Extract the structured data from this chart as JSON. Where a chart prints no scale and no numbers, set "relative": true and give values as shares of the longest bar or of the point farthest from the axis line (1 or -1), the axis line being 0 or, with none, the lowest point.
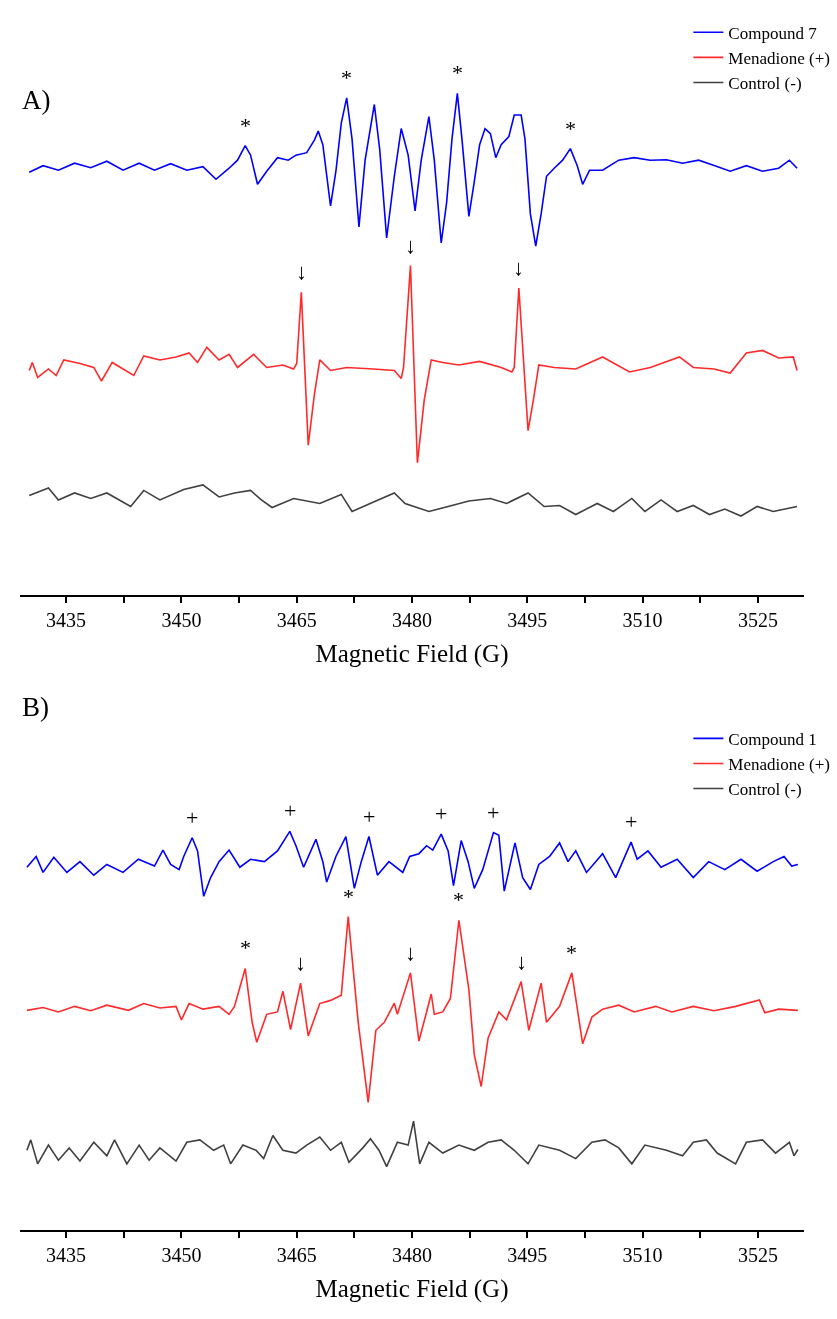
{
  "chart_data": [
    {
      "type": "line",
      "title": "A)",
      "xlabel": "Magnetic Field (G)",
      "relative": true,
      "legend": "top right",
      "xlim": [
        3429,
        3531
      ],
      "xticks": [
        3435,
        {
          "value": 3442.5,
          "label": null
        },
        3450,
        {
          "value": 3457.5,
          "label": null
        },
        3465,
        {
          "value": 3472.5,
          "label": null
        },
        3480,
        {
          "value": 3487.5,
          "label": null
        },
        3495,
        {
          "value": 3502.5,
          "label": null
        },
        3510,
        {
          "value": 3517.5,
          "label": null
        },
        3525
      ],
      "series": [
        {
          "name": "Compound 7",
          "color": "#0000ff",
          "x": [
            3430.2,
            3432.0,
            3434.0,
            3436.1,
            3438.2,
            3440.3,
            3442.4,
            3444.5,
            3446.5,
            3448.6,
            3450.7,
            3452.8,
            3454.5,
            3456.2,
            3457.3,
            3458.3,
            3459.0,
            3459.9,
            3461.1,
            3462.5,
            3463.9,
            3464.9,
            3466.3,
            3467.3,
            3467.8,
            3468.4,
            3469.4,
            3470.1,
            3470.8,
            3471.5,
            3472.2,
            3473.1,
            3473.9,
            3475.1,
            3475.8,
            3476.7,
            3477.7,
            3478.6,
            3479.5,
            3480.4,
            3481.2,
            3482.2,
            3482.9,
            3483.8,
            3484.5,
            3485.2,
            3485.9,
            3486.5,
            3487.4,
            3488.1,
            3488.8,
            3489.5,
            3490.2,
            3490.9,
            3491.6,
            3492.6,
            3493.3,
            3494.2,
            3494.7,
            3495.4,
            3496.1,
            3496.8,
            3497.5,
            3498.5,
            3499.6,
            3500.6,
            3501.5,
            3502.2,
            3503.1,
            3504.8,
            3506.9,
            3508.9,
            3511.0,
            3513.1,
            3515.2,
            3517.3,
            3519.4,
            3521.4,
            3523.5,
            3525.6,
            3527.7,
            3529.1,
            3530.1
          ],
          "values": [
            0.843,
            0.856,
            0.847,
            0.861,
            0.852,
            0.865,
            0.847,
            0.861,
            0.847,
            0.86,
            0.847,
            0.854,
            0.829,
            0.851,
            0.867,
            0.896,
            0.877,
            0.819,
            0.845,
            0.872,
            0.867,
            0.877,
            0.882,
            0.907,
            0.925,
            0.898,
            0.776,
            0.845,
            0.941,
            0.991,
            0.909,
            0.734,
            0.867,
            0.978,
            0.888,
            0.712,
            0.835,
            0.93,
            0.877,
            0.766,
            0.867,
            0.954,
            0.867,
            0.702,
            0.782,
            0.909,
            1.0,
            0.909,
            0.755,
            0.824,
            0.898,
            0.93,
            0.92,
            0.872,
            0.898,
            0.914,
            0.957,
            0.957,
            0.909,
            0.76,
            0.696,
            0.76,
            0.835,
            0.851,
            0.867,
            0.89,
            0.856,
            0.819,
            0.847,
            0.847,
            0.867,
            0.872,
            0.867,
            0.868,
            0.861,
            0.867,
            0.856,
            0.845,
            0.856,
            0.845,
            0.851,
            0.867,
            0.851
          ]
        },
        {
          "name": "Menadione (+)",
          "color": "#ff2a2a",
          "x": [
            3430.2,
            3430.6,
            3431.3,
            3432.7,
            3433.7,
            3434.7,
            3436.8,
            3438.6,
            3439.6,
            3441.0,
            3443.8,
            3445.1,
            3447.2,
            3449.3,
            3451.0,
            3452.1,
            3453.3,
            3454.9,
            3456.2,
            3457.3,
            3459.4,
            3461.1,
            3463.2,
            3464.6,
            3465.0,
            3465.6,
            3466.5,
            3467.3,
            3468.0,
            3469.4,
            3471.5,
            3475.0,
            3477.7,
            3478.6,
            3478.9,
            3479.8,
            3480.7,
            3481.6,
            3482.5,
            3484.0,
            3486.1,
            3488.8,
            3491.6,
            3493.0,
            3493.3,
            3493.9,
            3495.1,
            3495.8,
            3496.5,
            3498.5,
            3501.3,
            3504.8,
            3508.3,
            3511.0,
            3514.8,
            3516.6,
            3519.3,
            3521.4,
            3523.5,
            3525.6,
            3527.7,
            3529.6,
            3530.1
          ],
          "values": [
            0.448,
            0.464,
            0.434,
            0.451,
            0.438,
            0.469,
            0.462,
            0.454,
            0.427,
            0.464,
            0.438,
            0.477,
            0.469,
            0.475,
            0.483,
            0.464,
            0.494,
            0.469,
            0.48,
            0.454,
            0.48,
            0.454,
            0.459,
            0.451,
            0.462,
            0.604,
            0.299,
            0.4,
            0.469,
            0.448,
            0.454,
            0.451,
            0.448,
            0.432,
            0.454,
            0.657,
            0.264,
            0.39,
            0.469,
            0.464,
            0.459,
            0.466,
            0.454,
            0.445,
            0.454,
            0.612,
            0.328,
            0.39,
            0.459,
            0.454,
            0.451,
            0.475,
            0.445,
            0.454,
            0.475,
            0.454,
            0.451,
            0.443,
            0.483,
            0.488,
            0.473,
            0.475,
            0.448
          ]
        },
        {
          "name": "Control (-)",
          "color": "#404040",
          "x": [
            3430.2,
            3432.7,
            3434.0,
            3436.1,
            3438.2,
            3440.3,
            3443.4,
            3445.1,
            3447.2,
            3450.3,
            3452.8,
            3454.9,
            3456.9,
            3459.0,
            3460.4,
            3461.8,
            3464.6,
            3468.0,
            3470.8,
            3472.2,
            3475.0,
            3477.7,
            3479.1,
            3482.2,
            3484.7,
            3487.4,
            3490.2,
            3492.3,
            3495.1,
            3497.2,
            3499.2,
            3501.3,
            3504.1,
            3506.2,
            3508.6,
            3510.3,
            3512.4,
            3514.5,
            3516.6,
            3518.7,
            3520.7,
            3522.8,
            3524.9,
            3527.0,
            3530.1
          ],
          "values": [
            0.199,
            0.214,
            0.19,
            0.204,
            0.193,
            0.204,
            0.177,
            0.209,
            0.19,
            0.211,
            0.22,
            0.196,
            0.204,
            0.209,
            0.19,
            0.175,
            0.193,
            0.183,
            0.201,
            0.167,
            0.186,
            0.204,
            0.183,
            0.167,
            0.177,
            0.188,
            0.193,
            0.183,
            0.204,
            0.177,
            0.179,
            0.161,
            0.183,
            0.167,
            0.193,
            0.167,
            0.19,
            0.167,
            0.179,
            0.161,
            0.172,
            0.158,
            0.177,
            0.167,
            0.177
          ]
        }
      ],
      "annotations": [
        {
          "text": "*",
          "x": 3458.3,
          "y": 0.896
        },
        {
          "text": "*",
          "x": 3471.5,
          "y": 0.991
        },
        {
          "text": "*",
          "x": 3485.9,
          "y": 1.0
        },
        {
          "text": "*",
          "x": 3500.6,
          "y": 0.89
        },
        {
          "text": "↓",
          "x": 3465.6,
          "y": 0.604
        },
        {
          "text": "↓",
          "x": 3479.8,
          "y": 0.657
        },
        {
          "text": "↓",
          "x": 3493.9,
          "y": 0.612
        }
      ]
    },
    {
      "type": "line",
      "title": "B)",
      "xlabel": "Magnetic Field (G)",
      "relative": true,
      "legend": "top right",
      "xlim": [
        3429,
        3531
      ],
      "xticks": [
        3435,
        {
          "value": 3442.5,
          "label": null
        },
        3450,
        {
          "value": 3457.5,
          "label": null
        },
        3465,
        {
          "value": 3472.5,
          "label": null
        },
        3480,
        {
          "value": 3487.5,
          "label": null
        },
        3495,
        {
          "value": 3502.5,
          "label": null
        },
        3510,
        {
          "value": 3517.5,
          "label": null
        },
        3525
      ],
      "series": [
        {
          "name": "Compound 1",
          "color": "#0000ff",
          "x": [
            3429.9,
            3431.1,
            3432.0,
            3433.4,
            3435.1,
            3436.8,
            3438.6,
            3440.3,
            3442.4,
            3444.4,
            3446.5,
            3447.6,
            3448.6,
            3449.7,
            3450.3,
            3451.4,
            3452.1,
            3452.9,
            3453.8,
            3454.9,
            3456.2,
            3457.6,
            3459.0,
            3460.8,
            3462.5,
            3464.1,
            3464.9,
            3465.9,
            3467.5,
            3468.4,
            3468.9,
            3470.1,
            3471.4,
            3472.5,
            3473.4,
            3474.4,
            3475.5,
            3477.0,
            3478.8,
            3479.7,
            3480.9,
            3481.9,
            3482.7,
            3483.8,
            3484.7,
            3485.4,
            3486.4,
            3487.3,
            3488.1,
            3489.2,
            3490.6,
            3491.3,
            3492.0,
            3493.4,
            3494.4,
            3495.4,
            3496.5,
            3497.9,
            3499.2,
            3500.3,
            3501.3,
            3502.7,
            3504.8,
            3506.5,
            3508.5,
            3509.3,
            3510.7,
            3512.4,
            3514.5,
            3516.6,
            3518.6,
            3520.7,
            3522.8,
            3524.9,
            3527.0,
            3528.4,
            3529.4,
            3530.2
          ],
          "values": [
            0.91,
            0.937,
            0.897,
            0.935,
            0.897,
            0.924,
            0.89,
            0.917,
            0.897,
            0.93,
            0.913,
            0.953,
            0.917,
            0.904,
            0.937,
            0.984,
            0.951,
            0.837,
            0.884,
            0.924,
            0.953,
            0.91,
            0.93,
            0.924,
            0.951,
            1.0,
            0.964,
            0.91,
            0.98,
            0.924,
            0.873,
            0.937,
            0.987,
            0.857,
            0.924,
            0.987,
            0.89,
            0.924,
            0.897,
            0.937,
            0.944,
            0.964,
            0.953,
            0.993,
            0.951,
            0.864,
            0.977,
            0.924,
            0.857,
            0.904,
            0.997,
            0.99,
            0.85,
            0.971,
            0.884,
            0.854,
            0.917,
            0.937,
            0.971,
            0.924,
            0.951,
            0.897,
            0.944,
            0.884,
            0.973,
            0.93,
            0.951,
            0.91,
            0.93,
            0.884,
            0.924,
            0.904,
            0.93,
            0.9,
            0.924,
            0.937,
            0.913,
            0.917
          ]
        },
        {
          "name": "Menadione (+)",
          "color": "#ff2a2a",
          "x": [
            3429.9,
            3432.0,
            3434.0,
            3436.1,
            3438.2,
            3440.3,
            3443.1,
            3445.1,
            3447.2,
            3449.3,
            3450.0,
            3451.0,
            3452.8,
            3454.9,
            3456.2,
            3456.9,
            3458.3,
            3459.2,
            3459.8,
            3461.1,
            3462.5,
            3463.2,
            3464.2,
            3465.5,
            3466.5,
            3468.0,
            3469.4,
            3470.8,
            3471.7,
            3473.0,
            3474.3,
            3475.3,
            3476.4,
            3477.7,
            3478.1,
            3479.8,
            3480.9,
            3481.9,
            3482.5,
            3482.9,
            3484.0,
            3485.0,
            3486.1,
            3487.4,
            3488.1,
            3489.0,
            3489.9,
            3491.3,
            3492.3,
            3494.2,
            3495.2,
            3496.8,
            3497.5,
            3499.2,
            3500.8,
            3502.2,
            3503.4,
            3504.8,
            3506.9,
            3508.9,
            3511.7,
            3513.8,
            3516.6,
            3519.3,
            3522.1,
            3525.2,
            3525.9,
            3527.7,
            3530.2
          ],
          "values": [
            0.551,
            0.558,
            0.547,
            0.561,
            0.55,
            0.564,
            0.551,
            0.568,
            0.557,
            0.561,
            0.527,
            0.568,
            0.554,
            0.561,
            0.541,
            0.561,
            0.656,
            0.521,
            0.471,
            0.541,
            0.547,
            0.599,
            0.503,
            0.619,
            0.487,
            0.568,
            0.576,
            0.589,
            0.786,
            0.521,
            0.32,
            0.501,
            0.521,
            0.569,
            0.541,
            0.645,
            0.474,
            0.547,
            0.592,
            0.541,
            0.547,
            0.581,
            0.777,
            0.603,
            0.44,
            0.36,
            0.481,
            0.547,
            0.527,
            0.623,
            0.501,
            0.619,
            0.521,
            0.561,
            0.645,
            0.467,
            0.534,
            0.554,
            0.564,
            0.547,
            0.561,
            0.547,
            0.561,
            0.55,
            0.561,
            0.577,
            0.545,
            0.554,
            0.551
          ]
        },
        {
          "name": "Control (-)",
          "color": "#404040",
          "x": [
            3429.9,
            3430.4,
            3431.3,
            3432.7,
            3434.0,
            3435.4,
            3436.8,
            3438.6,
            3440.3,
            3441.3,
            3442.9,
            3444.5,
            3445.8,
            3447.2,
            3449.3,
            3450.7,
            3452.4,
            3454.2,
            3455.5,
            3456.4,
            3458.0,
            3459.7,
            3460.7,
            3461.9,
            3463.2,
            3464.9,
            3466.3,
            3468.0,
            3469.4,
            3470.8,
            3471.8,
            3473.6,
            3474.6,
            3475.7,
            3476.7,
            3478.1,
            3479.5,
            3480.2,
            3481.0,
            3482.2,
            3484.0,
            3486.1,
            3488.1,
            3489.9,
            3491.6,
            3493.3,
            3495.1,
            3496.5,
            3499.2,
            3501.3,
            3503.4,
            3505.1,
            3506.9,
            3508.6,
            3510.3,
            3513.1,
            3515.2,
            3516.6,
            3518.3,
            3519.7,
            3522.1,
            3523.5,
            3525.6,
            3527.3,
            3529.1,
            3529.7,
            3530.2
          ],
          "values": [
            0.2,
            0.226,
            0.166,
            0.213,
            0.175,
            0.206,
            0.173,
            0.22,
            0.186,
            0.226,
            0.166,
            0.213,
            0.175,
            0.206,
            0.173,
            0.22,
            0.226,
            0.2,
            0.213,
            0.166,
            0.213,
            0.2,
            0.179,
            0.237,
            0.2,
            0.193,
            0.213,
            0.233,
            0.2,
            0.22,
            0.17,
            0.206,
            0.229,
            0.2,
            0.159,
            0.22,
            0.213,
            0.273,
            0.166,
            0.22,
            0.193,
            0.213,
            0.2,
            0.22,
            0.226,
            0.2,
            0.166,
            0.213,
            0.2,
            0.179,
            0.22,
            0.226,
            0.206,
            0.166,
            0.213,
            0.2,
            0.186,
            0.22,
            0.226,
            0.193,
            0.166,
            0.22,
            0.226,
            0.193,
            0.22,
            0.186,
            0.202
          ]
        }
      ],
      "annotations": [
        {
          "text": "*",
          "x": 3458.3,
          "y": 0.656
        },
        {
          "text": "*",
          "x": 3471.7,
          "y": 0.786
        },
        {
          "text": "*",
          "x": 3486.1,
          "y": 0.777
        },
        {
          "text": "*",
          "x": 3500.8,
          "y": 0.645
        },
        {
          "text": "↓",
          "x": 3465.5,
          "y": 0.619
        },
        {
          "text": "↓",
          "x": 3479.8,
          "y": 0.645
        },
        {
          "text": "↓",
          "x": 3494.2,
          "y": 0.623
        },
        {
          "text": "+",
          "x": 3451.4,
          "y": 0.984
        },
        {
          "text": "+",
          "x": 3464.1,
          "y": 1.0
        },
        {
          "text": "+",
          "x": 3474.4,
          "y": 0.987
        },
        {
          "text": "+",
          "x": 3483.8,
          "y": 0.993
        },
        {
          "text": "+",
          "x": 3490.6,
          "y": 0.997
        },
        {
          "text": "+",
          "x": 3508.5,
          "y": 0.973
        }
      ]
    }
  ]
}
